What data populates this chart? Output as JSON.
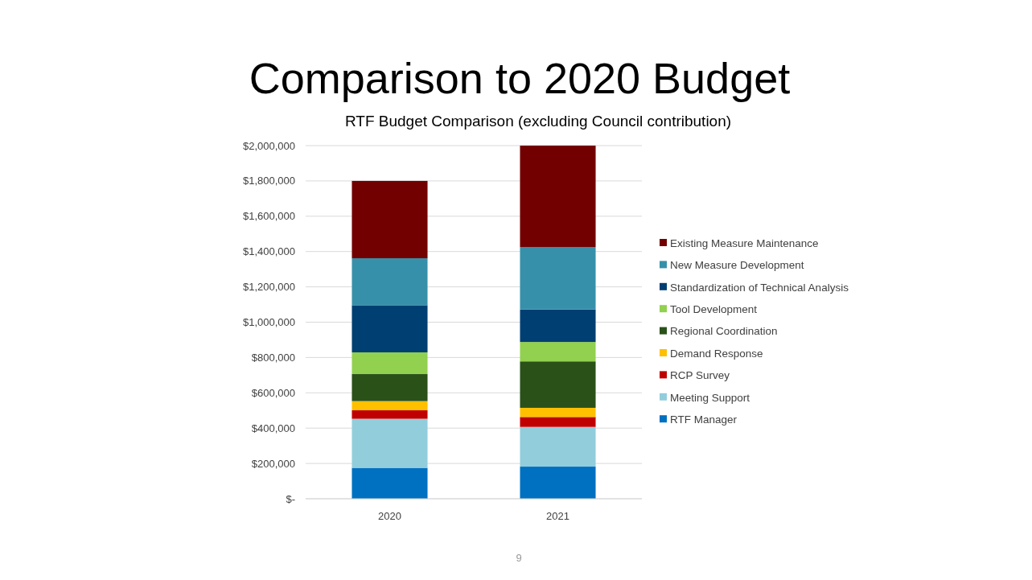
{
  "chart_data": {
    "type": "bar",
    "title": "Comparison to 2020 Budget",
    "subtitle": "RTF Budget Comparison (excluding Council contribution)",
    "annotations": [
      "9"
    ],
    "categories": [
      "2020",
      "2021"
    ],
    "stacked": true,
    "legend": "right",
    "grid": "y",
    "ylim": [
      0,
      2000000
    ],
    "yticks": [
      {
        "value": 0,
        "label": "$-"
      },
      {
        "value": 200000,
        "label": "$200,000"
      },
      {
        "value": 400000,
        "label": "$400,000"
      },
      {
        "value": 600000,
        "label": "$600,000"
      },
      {
        "value": 800000,
        "label": "$800,000"
      },
      {
        "value": 1000000,
        "label": "$1,000,000"
      },
      {
        "value": 1200000,
        "label": "$1,200,000"
      },
      {
        "value": 1400000,
        "label": "$1,400,000"
      },
      {
        "value": 1600000,
        "label": "$1,600,000"
      },
      {
        "value": 1800000,
        "label": "$1,800,000"
      },
      {
        "value": 2000000,
        "label": "$2,000,000"
      }
    ],
    "series": [
      {
        "name": "RTF Manager",
        "color": "#0070c0",
        "values": [
          175000,
          182000
        ]
      },
      {
        "name": "Meeting Support",
        "color": "#92cddc",
        "values": [
          278000,
          225000
        ]
      },
      {
        "name": "RCP Survey",
        "color": "#c00000",
        "values": [
          48000,
          56000
        ]
      },
      {
        "name": "Demand Response",
        "color": "#ffc000",
        "values": [
          52000,
          52000
        ]
      },
      {
        "name": "Regional Coordination",
        "color": "#2a5118",
        "values": [
          153000,
          263000
        ]
      },
      {
        "name": "Tool Development",
        "color": "#92d050",
        "values": [
          123000,
          110000
        ]
      },
      {
        "name": "Standardization of Technical Analysis",
        "color": "#003f72",
        "values": [
          267000,
          184000
        ]
      },
      {
        "name": "New Measure Development",
        "color": "#3790a9",
        "values": [
          266000,
          354000
        ]
      },
      {
        "name": "Existing Measure Maintenance",
        "color": "#720000",
        "values": [
          438000,
          574000
        ]
      }
    ]
  }
}
